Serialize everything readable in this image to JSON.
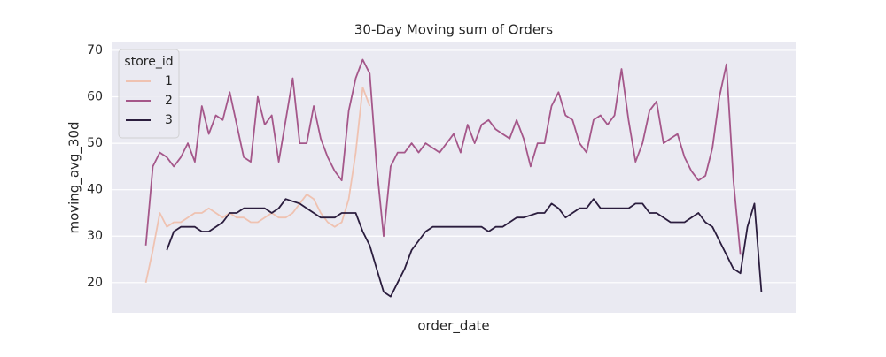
{
  "chart_data": {
    "type": "line",
    "title": "30-Day Moving sum of Orders",
    "x_label": "order_date",
    "y_label": "moving_avg_30d",
    "legend_title": "store_id",
    "legend": "upper left",
    "grid": true,
    "ylim": [
      13.5,
      71.7
    ],
    "yticks": [
      20,
      30,
      40,
      50,
      60,
      70
    ],
    "categories": [
      null,
      null,
      null,
      null,
      null,
      null,
      null,
      null,
      null,
      null,
      null,
      null,
      null,
      null,
      null,
      null,
      null,
      null,
      null,
      null,
      null,
      null,
      null,
      null,
      null,
      null,
      null,
      null,
      null,
      null,
      null,
      null,
      null,
      null,
      null,
      null,
      null,
      null,
      null,
      null,
      null,
      null,
      null,
      null,
      null,
      null,
      null,
      null,
      null,
      null,
      null,
      null,
      null,
      null,
      null,
      null,
      null,
      null,
      null,
      null,
      null,
      null,
      null,
      null,
      null,
      null,
      null,
      null,
      null,
      null,
      null,
      null,
      null,
      null,
      null,
      null,
      null,
      null,
      null,
      null,
      null,
      null,
      null,
      null,
      null,
      null,
      null,
      null,
      null
    ],
    "series": [
      {
        "name": "1",
        "color": "#efc2b1",
        "values": [
          20,
          27,
          35,
          32,
          33,
          33,
          34,
          35,
          35,
          36,
          35,
          34,
          35,
          34,
          34,
          33,
          33,
          34,
          35,
          34,
          34,
          35,
          37,
          39,
          38,
          35,
          33,
          32,
          33,
          38,
          48,
          62,
          58,
          null,
          null,
          null,
          null,
          null,
          null,
          null,
          null,
          null,
          null,
          null,
          null,
          null,
          null,
          null,
          null,
          null,
          null,
          null,
          null,
          null,
          null,
          null,
          null,
          null,
          null,
          null,
          null,
          null,
          null,
          null,
          null,
          null,
          null,
          null,
          null,
          null,
          null,
          null,
          null,
          null,
          null,
          null,
          null,
          null,
          null,
          null,
          null,
          null,
          null,
          null,
          null,
          null,
          null,
          null,
          null
        ]
      },
      {
        "name": "2",
        "color": "#a5578a",
        "values": [
          28,
          45,
          48,
          47,
          45,
          47,
          50,
          46,
          58,
          52,
          56,
          55,
          61,
          54,
          47,
          46,
          60,
          54,
          56,
          46,
          55,
          64,
          50,
          50,
          58,
          51,
          47,
          44,
          42,
          57,
          64,
          68,
          65,
          45,
          30,
          45,
          48,
          48,
          50,
          48,
          50,
          49,
          48,
          50,
          52,
          48,
          54,
          50,
          54,
          55,
          53,
          52,
          51,
          55,
          51,
          45,
          50,
          50,
          58,
          61,
          56,
          55,
          50,
          48,
          55,
          56,
          54,
          56,
          66,
          55,
          46,
          50,
          57,
          59,
          50,
          51,
          52,
          47,
          44,
          42,
          43,
          49,
          60,
          67,
          42,
          26,
          null,
          null,
          null
        ]
      },
      {
        "name": "3",
        "color": "#2b1d3e",
        "values": [
          null,
          null,
          null,
          27,
          31,
          32,
          32,
          32,
          31,
          31,
          32,
          33,
          35,
          35,
          36,
          36,
          36,
          36,
          35,
          36,
          38,
          37.5,
          37,
          36,
          35,
          34,
          34,
          34,
          35,
          35,
          35,
          31,
          28,
          23,
          18,
          17,
          20,
          23,
          27,
          29,
          31,
          32,
          32,
          32,
          32,
          32,
          32,
          32,
          32,
          31,
          32,
          32,
          33,
          34,
          34,
          34.5,
          35,
          35,
          37,
          36,
          34,
          35,
          36,
          36,
          38,
          36,
          36,
          36,
          36,
          36,
          37,
          37,
          35,
          35,
          34,
          33,
          33,
          33,
          34,
          35,
          33,
          32,
          29,
          26,
          23,
          22,
          32,
          37,
          18
        ]
      }
    ]
  }
}
